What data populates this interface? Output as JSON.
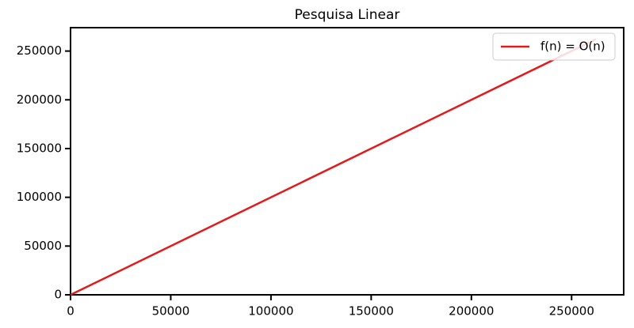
{
  "chart_data": {
    "type": "line",
    "title": "Pesquisa Linear",
    "x": [
      0,
      262144
    ],
    "series": [
      {
        "name": "f(n) = O(n)",
        "color": "#e31a1c",
        "values": [
          0,
          262144
        ]
      }
    ],
    "xlim": [
      0,
      276000
    ],
    "ylim": [
      0,
      274000
    ],
    "xticks": [
      0,
      50000,
      100000,
      150000,
      200000,
      250000
    ],
    "yticks": [
      0,
      50000,
      100000,
      150000,
      200000,
      250000
    ],
    "grid": false,
    "legend": "upper right"
  }
}
